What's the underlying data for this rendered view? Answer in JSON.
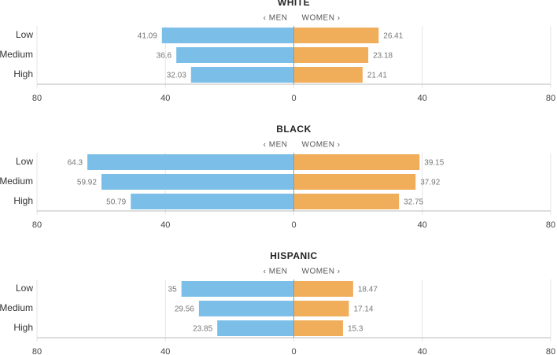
{
  "chart_data": [
    {
      "type": "butterfly",
      "title": "WHITE",
      "categories": [
        "Low",
        "Medium",
        "High"
      ],
      "series": [
        {
          "name": "‹ MEN",
          "color": "#7bbfe8",
          "values": [
            -41.09,
            -36.6,
            -32.03
          ],
          "value_labels": [
            "41.09",
            "36.6",
            "32.03"
          ]
        },
        {
          "name": "WOMEN ›",
          "color": "#f0ad5a",
          "values": [
            26.41,
            23.18,
            21.41
          ]
        }
      ],
      "xlim": [
        -80,
        80
      ],
      "xticks": [
        {
          "value": -80,
          "label": "80"
        },
        {
          "value": -40,
          "label": "40"
        },
        0,
        40,
        80
      ],
      "grid": true
    },
    {
      "type": "butterfly",
      "title": "BLACK",
      "categories": [
        "Low",
        "Medium",
        "High"
      ],
      "series": [
        {
          "name": "‹ MEN",
          "color": "#7bbfe8",
          "values": [
            -64.3,
            -59.92,
            -50.79
          ],
          "value_labels": [
            "64.3",
            "59.92",
            "50.79"
          ]
        },
        {
          "name": "WOMEN ›",
          "color": "#f0ad5a",
          "values": [
            39.15,
            37.92,
            32.75
          ]
        }
      ],
      "xlim": [
        -80,
        80
      ],
      "xticks": [
        {
          "value": -80,
          "label": "80"
        },
        {
          "value": -40,
          "label": "40"
        },
        0,
        40,
        80
      ],
      "grid": true
    },
    {
      "type": "butterfly",
      "title": "HISPANIC",
      "categories": [
        "Low",
        "Medium",
        "High"
      ],
      "series": [
        {
          "name": "‹ MEN",
          "color": "#7bbfe8",
          "values": [
            -35,
            -29.56,
            -23.85
          ],
          "value_labels": [
            "35",
            "29.56",
            "23.85"
          ]
        },
        {
          "name": "WOMEN ›",
          "color": "#f0ad5a",
          "values": [
            18.47,
            17.14,
            15.3
          ]
        }
      ],
      "xlim": [
        -80,
        80
      ],
      "xticks": [
        {
          "value": -80,
          "label": "80"
        },
        {
          "value": -40,
          "label": "40"
        },
        0,
        40,
        80
      ],
      "grid": true
    }
  ]
}
